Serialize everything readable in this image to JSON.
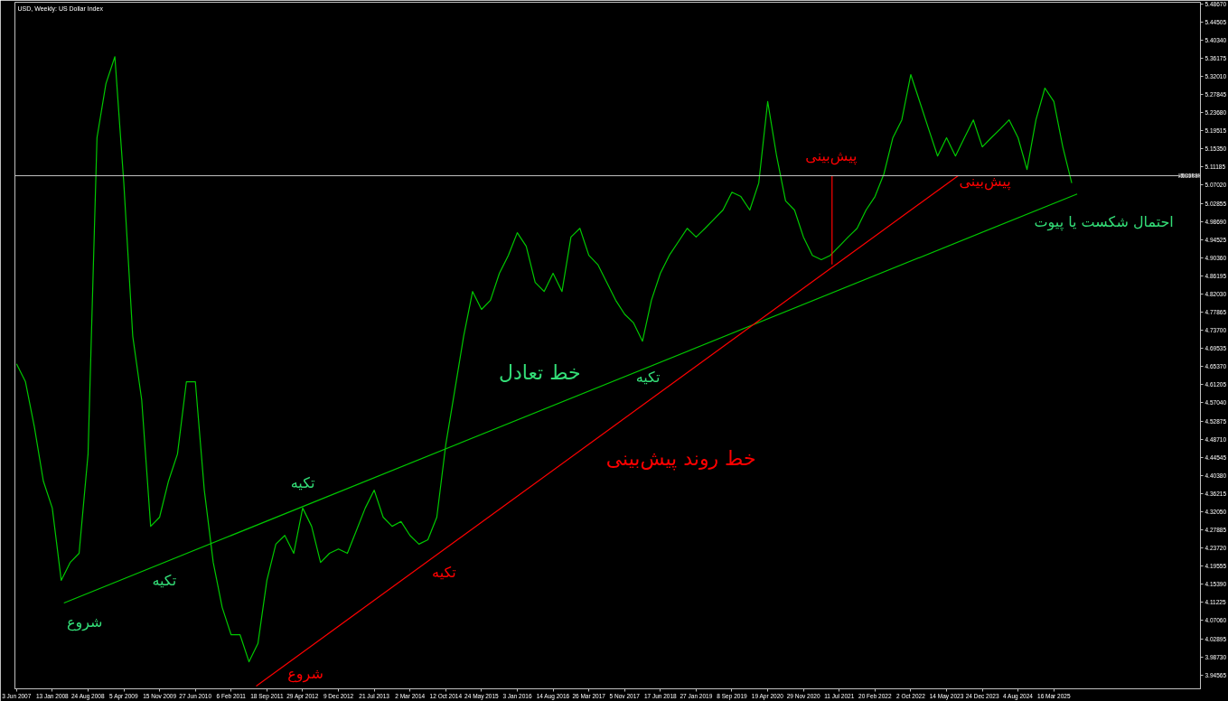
{
  "chart_data": {
    "type": "line",
    "title": "USD, Weekly: US Dollar Index",
    "x": [
      "2007-06-03",
      "2007-07-29",
      "2007-09-23",
      "2007-11-18",
      "2008-01-13",
      "2008-03-09",
      "2008-05-04",
      "2008-06-29",
      "2008-08-24",
      "2008-10-19",
      "2008-12-14",
      "2009-02-08",
      "2009-04-05",
      "2009-05-31",
      "2009-07-26",
      "2009-09-20",
      "2009-11-15",
      "2010-01-10",
      "2010-03-07",
      "2010-05-02",
      "2010-06-27",
      "2010-08-22",
      "2010-10-17",
      "2010-12-12",
      "2011-02-06",
      "2011-04-03",
      "2011-05-29",
      "2011-07-24",
      "2011-09-18",
      "2011-11-13",
      "2012-01-08",
      "2012-03-04",
      "2012-04-29",
      "2012-06-24",
      "2012-08-19",
      "2012-10-14",
      "2012-12-09",
      "2013-02-03",
      "2013-03-31",
      "2013-05-26",
      "2013-07-21",
      "2013-09-15",
      "2013-11-10",
      "2014-01-05",
      "2014-03-02",
      "2014-04-27",
      "2014-06-22",
      "2014-08-17",
      "2014-10-12",
      "2014-12-07",
      "2015-02-01",
      "2015-03-29",
      "2015-05-24",
      "2015-07-19",
      "2015-09-13",
      "2015-11-08",
      "2016-01-03",
      "2016-02-28",
      "2016-04-24",
      "2016-06-19",
      "2016-08-14",
      "2016-10-09",
      "2016-12-04",
      "2017-01-29",
      "2017-03-26",
      "2017-05-21",
      "2017-07-16",
      "2017-09-10",
      "2017-11-05",
      "2017-12-31",
      "2018-02-25",
      "2018-04-22",
      "2018-06-17",
      "2018-08-12",
      "2018-10-07",
      "2018-12-02",
      "2019-01-27",
      "2019-03-24",
      "2019-05-19",
      "2019-07-14",
      "2019-09-08",
      "2019-11-03",
      "2019-12-29",
      "2020-02-23",
      "2020-04-19",
      "2020-06-14",
      "2020-08-09",
      "2020-10-04",
      "2020-11-29",
      "2021-01-24",
      "2021-03-21",
      "2021-05-16",
      "2021-07-11",
      "2021-09-05",
      "2021-10-31",
      "2021-12-26",
      "2022-02-20",
      "2022-04-17",
      "2022-06-12",
      "2022-08-07",
      "2022-10-02",
      "2022-11-27",
      "2023-01-22",
      "2023-03-19",
      "2023-05-14",
      "2023-07-09",
      "2023-09-03",
      "2023-10-29",
      "2023-12-24",
      "2024-02-18",
      "2024-04-14",
      "2024-06-09",
      "2024-08-04",
      "2024-09-29",
      "2024-11-24",
      "2025-01-19",
      "2025-03-16",
      "2025-05-11",
      "2025-07-06"
    ],
    "series": [
      {
        "color": "#00c800",
        "values": [
          4.66,
          4.619,
          4.515,
          4.391,
          4.329,
          4.163,
          4.204,
          4.225,
          4.453,
          5.179,
          5.303,
          5.365,
          5.075,
          4.723,
          4.577,
          4.287,
          4.308,
          4.391,
          4.453,
          4.619,
          4.619,
          4.37,
          4.204,
          4.101,
          4.038,
          4.038,
          3.976,
          4.018,
          4.163,
          4.246,
          4.266,
          4.225,
          4.329,
          4.287,
          4.204,
          4.225,
          4.235,
          4.225,
          4.277,
          4.329,
          4.37,
          4.308,
          4.287,
          4.298,
          4.266,
          4.246,
          4.256,
          4.308,
          4.474,
          4.598,
          4.723,
          4.826,
          4.785,
          4.806,
          4.868,
          4.909,
          4.961,
          4.93,
          4.847,
          4.826,
          4.868,
          4.826,
          4.951,
          4.971,
          4.909,
          4.888,
          4.847,
          4.806,
          4.774,
          4.754,
          4.712,
          4.806,
          4.868,
          4.909,
          4.94,
          4.971,
          4.951,
          4.971,
          4.992,
          5.013,
          5.054,
          5.044,
          5.013,
          5.075,
          5.262,
          5.137,
          5.034,
          5.013,
          4.951,
          4.909,
          4.899,
          4.909,
          4.93,
          4.951,
          4.971,
          5.013,
          5.044,
          5.096,
          5.179,
          5.22,
          5.324,
          5.262,
          5.199,
          5.137,
          5.179,
          5.137,
          5.179,
          5.22,
          5.158,
          5.179,
          5.199,
          5.22,
          5.179,
          5.106,
          5.22,
          5.293,
          5.262,
          5.158,
          5.075
        ]
      },
      {
        "type": "line",
        "color": "#00c800",
        "x": [
          "2008-03-26",
          "2025-08-09"
        ],
        "values": [
          4.111,
          5.05
        ]
      },
      {
        "type": "line",
        "color": "#ff0000",
        "x": [
          "2011-07-13",
          "2023-07-26"
        ],
        "values": [
          3.92,
          5.092
        ]
      },
      {
        "type": "line",
        "color": "#ff0000",
        "x": [
          "2021-05-27",
          "2021-05-27"
        ],
        "values": [
          5.092,
          4.888
        ]
      }
    ],
    "xlim": [
      "2007-05-24",
      "2027-09-20"
    ],
    "xticks": [
      {
        "value": "2007-06-03",
        "label": "3 Jun 2007"
      },
      {
        "value": "2008-01-13",
        "label": "13 Jan 2008"
      },
      {
        "value": "2008-08-24",
        "label": "24 Aug 2008"
      },
      {
        "value": "2009-04-05",
        "label": "5 Apr 2009"
      },
      {
        "value": "2009-11-15",
        "label": "15 Nov 2009"
      },
      {
        "value": "2010-06-27",
        "label": "27 Jun 2010"
      },
      {
        "value": "2011-02-06",
        "label": "6 Feb 2011"
      },
      {
        "value": "2011-09-18",
        "label": "18 Sep 2011"
      },
      {
        "value": "2012-04-29",
        "label": "29 Apr 2012"
      },
      {
        "value": "2012-12-09",
        "label": "9 Dec 2012"
      },
      {
        "value": "2013-07-21",
        "label": "21 Jul 2013"
      },
      {
        "value": "2014-03-02",
        "label": "2 Mar 2014"
      },
      {
        "value": "2014-10-12",
        "label": "12 Oct 2014"
      },
      {
        "value": "2015-05-24",
        "label": "24 May 2015"
      },
      {
        "value": "2016-01-03",
        "label": "3 Jan 2016"
      },
      {
        "value": "2016-08-14",
        "label": "14 Aug 2016"
      },
      {
        "value": "2017-03-26",
        "label": "26 Mar 2017"
      },
      {
        "value": "2017-11-05",
        "label": "5 Nov 2017"
      },
      {
        "value": "2018-06-17",
        "label": "17 Jun 2018"
      },
      {
        "value": "2019-01-27",
        "label": "27 Jan 2019"
      },
      {
        "value": "2019-09-08",
        "label": "8 Sep 2019"
      },
      {
        "value": "2020-04-19",
        "label": "19 Apr 2020"
      },
      {
        "value": "2020-11-29",
        "label": "29 Nov 2020"
      },
      {
        "value": "2021-07-11",
        "label": "11 Jul 2021"
      },
      {
        "value": "2022-02-20",
        "label": "20 Feb 2022"
      },
      {
        "value": "2022-10-02",
        "label": "2 Oct 2022"
      },
      {
        "value": "2023-05-14",
        "label": "14 May 2023"
      },
      {
        "value": "2023-12-24",
        "label": "24 Dec 2023"
      },
      {
        "value": "2024-08-04",
        "label": "4 Aug 2024"
      },
      {
        "value": "2025-03-16",
        "label": "16 Mar 2025"
      }
    ],
    "ylim": [
      3.914,
      5.49
    ],
    "yticks": [
      {
        "value": 5.4867,
        "label": "5.48670"
      },
      5.44505,
      {
        "value": 5.4034,
        "label": "5.40340"
      },
      5.36175,
      {
        "value": 5.3201,
        "label": "5.32010"
      },
      5.27845,
      {
        "value": 5.2368,
        "label": "5.23680"
      },
      5.19515,
      {
        "value": 5.1535,
        "label": "5.15350"
      },
      5.11185,
      {
        "value": 5.0702,
        "label": "5.07020"
      },
      5.02855,
      {
        "value": 4.9869,
        "label": "4.98690"
      },
      4.94525,
      {
        "value": 4.9036,
        "label": "4.90360"
      },
      4.86195,
      {
        "value": 4.8203,
        "label": "4.82030"
      },
      4.77865,
      {
        "value": 4.737,
        "label": "4.73700"
      },
      4.69535,
      {
        "value": 4.6537,
        "label": "4.65370"
      },
      4.61205,
      {
        "value": 4.5704,
        "label": "4.57040"
      },
      4.52875,
      {
        "value": 4.4871,
        "label": "4.48710"
      },
      4.44545,
      {
        "value": 4.4038,
        "label": "4.40380"
      },
      4.36215,
      {
        "value": 4.3205,
        "label": "4.32050"
      },
      4.27885,
      {
        "value": 4.2372,
        "label": "4.23720"
      },
      4.19555,
      {
        "value": 4.1539,
        "label": "4.15390"
      },
      4.11225,
      {
        "value": 4.0706,
        "label": "4.07060"
      },
      4.02895,
      {
        "value": 3.9873,
        "label": "3.98730"
      },
      3.94565
    ],
    "ref_lines": [
      {
        "axis": "y",
        "value": 5.09181,
        "label": "5.09181",
        "color": "#c0c0c0"
      }
    ],
    "annotations": [
      "شروع",
      "تکیه",
      "تکیه",
      "خط تعادل",
      "تکیه",
      "احتمال شکست یا پیوت",
      "شروع",
      "تکیه",
      "خط روند پیش‌بینی",
      "پیش‌بینی",
      "پیش‌بینی"
    ],
    "grid": false
  }
}
